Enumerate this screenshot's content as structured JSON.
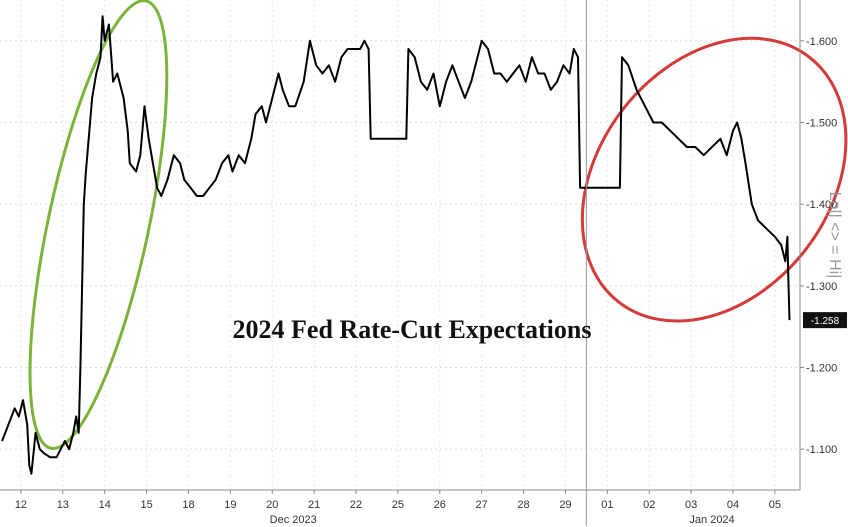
{
  "chart_data": {
    "type": "line",
    "title": "2024 Fed Rate-Cut Expectations",
    "axis_side_label": "Lo|| <> = Hi|",
    "last_value_label": "-1.258",
    "ylim": [
      1.05,
      1.65
    ],
    "y_ticks": [
      {
        "value": 1.1,
        "label": "-1.100"
      },
      {
        "value": 1.2,
        "label": "-1.200"
      },
      {
        "value": 1.3,
        "label": "-1.300"
      },
      {
        "value": 1.4,
        "label": "-1.400"
      },
      {
        "value": 1.5,
        "label": "-1.500"
      },
      {
        "value": 1.6,
        "label": "-1.600"
      }
    ],
    "x_ticks": [
      "12",
      "13",
      "14",
      "15",
      "18",
      "19",
      "20",
      "21",
      "22",
      "25",
      "26",
      "27",
      "28",
      "29",
      "01",
      "02",
      "03",
      "04",
      "05"
    ],
    "month_labels": [
      {
        "at": 6.5,
        "label": "Dec 2023"
      },
      {
        "at": 16.5,
        "label": "Jan 2024"
      }
    ],
    "x_range": [
      -0.5,
      18.6
    ],
    "grid": true,
    "series": [
      {
        "values": [
          [
            -0.45,
            1.11
          ],
          [
            -0.3,
            1.13
          ],
          [
            -0.15,
            1.15
          ],
          [
            -0.05,
            1.14
          ],
          [
            0.05,
            1.16
          ],
          [
            0.15,
            1.13
          ],
          [
            0.2,
            1.08
          ],
          [
            0.25,
            1.07
          ],
          [
            0.35,
            1.12
          ],
          [
            0.45,
            1.1
          ],
          [
            0.55,
            1.095
          ],
          [
            0.7,
            1.09
          ],
          [
            0.85,
            1.09
          ],
          [
            0.95,
            1.1
          ],
          [
            1.05,
            1.11
          ],
          [
            1.15,
            1.1
          ],
          [
            1.25,
            1.12
          ],
          [
            1.32,
            1.14
          ],
          [
            1.38,
            1.12
          ],
          [
            1.42,
            1.2
          ],
          [
            1.46,
            1.3
          ],
          [
            1.5,
            1.4
          ],
          [
            1.55,
            1.44
          ],
          [
            1.6,
            1.47
          ],
          [
            1.7,
            1.53
          ],
          [
            1.8,
            1.56
          ],
          [
            1.9,
            1.58
          ],
          [
            1.95,
            1.63
          ],
          [
            2.0,
            1.6
          ],
          [
            2.1,
            1.62
          ],
          [
            2.2,
            1.55
          ],
          [
            2.3,
            1.56
          ],
          [
            2.45,
            1.53
          ],
          [
            2.55,
            1.49
          ],
          [
            2.6,
            1.45
          ],
          [
            2.75,
            1.44
          ],
          [
            2.85,
            1.46
          ],
          [
            2.95,
            1.52
          ],
          [
            3.05,
            1.48
          ],
          [
            3.15,
            1.45
          ],
          [
            3.25,
            1.42
          ],
          [
            3.35,
            1.41
          ],
          [
            3.5,
            1.43
          ],
          [
            3.65,
            1.46
          ],
          [
            3.8,
            1.45
          ],
          [
            3.9,
            1.43
          ],
          [
            4.05,
            1.42
          ],
          [
            4.2,
            1.41
          ],
          [
            4.35,
            1.41
          ],
          [
            4.5,
            1.42
          ],
          [
            4.65,
            1.43
          ],
          [
            4.8,
            1.45
          ],
          [
            4.95,
            1.46
          ],
          [
            5.05,
            1.44
          ],
          [
            5.2,
            1.46
          ],
          [
            5.35,
            1.45
          ],
          [
            5.5,
            1.48
          ],
          [
            5.6,
            1.51
          ],
          [
            5.75,
            1.52
          ],
          [
            5.85,
            1.5
          ],
          [
            6.0,
            1.53
          ],
          [
            6.15,
            1.56
          ],
          [
            6.25,
            1.54
          ],
          [
            6.4,
            1.52
          ],
          [
            6.55,
            1.52
          ],
          [
            6.75,
            1.55
          ],
          [
            6.9,
            1.6
          ],
          [
            7.05,
            1.57
          ],
          [
            7.2,
            1.56
          ],
          [
            7.35,
            1.57
          ],
          [
            7.5,
            1.55
          ],
          [
            7.65,
            1.58
          ],
          [
            7.8,
            1.59
          ],
          [
            7.95,
            1.59
          ],
          [
            8.1,
            1.59
          ],
          [
            8.2,
            1.6
          ],
          [
            8.3,
            1.59
          ],
          [
            8.35,
            1.48
          ],
          [
            9.2,
            1.48
          ],
          [
            9.25,
            1.59
          ],
          [
            9.4,
            1.58
          ],
          [
            9.55,
            1.55
          ],
          [
            9.7,
            1.54
          ],
          [
            9.85,
            1.56
          ],
          [
            10.0,
            1.52
          ],
          [
            10.15,
            1.55
          ],
          [
            10.3,
            1.57
          ],
          [
            10.45,
            1.55
          ],
          [
            10.6,
            1.53
          ],
          [
            10.75,
            1.55
          ],
          [
            10.9,
            1.58
          ],
          [
            11.0,
            1.6
          ],
          [
            11.15,
            1.59
          ],
          [
            11.3,
            1.56
          ],
          [
            11.45,
            1.56
          ],
          [
            11.6,
            1.55
          ],
          [
            11.75,
            1.56
          ],
          [
            11.9,
            1.57
          ],
          [
            12.05,
            1.55
          ],
          [
            12.2,
            1.58
          ],
          [
            12.35,
            1.56
          ],
          [
            12.5,
            1.56
          ],
          [
            12.65,
            1.54
          ],
          [
            12.8,
            1.55
          ],
          [
            12.95,
            1.57
          ],
          [
            13.1,
            1.56
          ],
          [
            13.2,
            1.59
          ],
          [
            13.3,
            1.58
          ],
          [
            13.35,
            1.42
          ],
          [
            14.3,
            1.42
          ],
          [
            14.35,
            1.58
          ],
          [
            14.5,
            1.57
          ],
          [
            14.7,
            1.54
          ],
          [
            14.9,
            1.52
          ],
          [
            15.1,
            1.5
          ],
          [
            15.3,
            1.5
          ],
          [
            15.5,
            1.49
          ],
          [
            15.7,
            1.48
          ],
          [
            15.9,
            1.47
          ],
          [
            16.1,
            1.47
          ],
          [
            16.3,
            1.46
          ],
          [
            16.5,
            1.47
          ],
          [
            16.7,
            1.48
          ],
          [
            16.85,
            1.46
          ],
          [
            17.0,
            1.49
          ],
          [
            17.1,
            1.5
          ],
          [
            17.2,
            1.48
          ],
          [
            17.3,
            1.45
          ],
          [
            17.45,
            1.4
          ],
          [
            17.6,
            1.38
          ],
          [
            17.8,
            1.37
          ],
          [
            18.0,
            1.36
          ],
          [
            18.15,
            1.35
          ],
          [
            18.25,
            1.33
          ],
          [
            18.3,
            1.36
          ],
          [
            18.32,
            1.31
          ],
          [
            18.35,
            1.258
          ]
        ]
      }
    ],
    "annotations": [
      {
        "shape": "ellipse",
        "color": "#7db33a",
        "cx": 1.85,
        "cy": 1.375,
        "rx": 1.2,
        "ry": 0.28,
        "rotate": 12
      },
      {
        "shape": "ellipse",
        "color": "#d43a3a",
        "cx": 16.55,
        "cy": 1.43,
        "rx": 2.75,
        "ry": 0.19,
        "rotate": 38
      }
    ]
  }
}
